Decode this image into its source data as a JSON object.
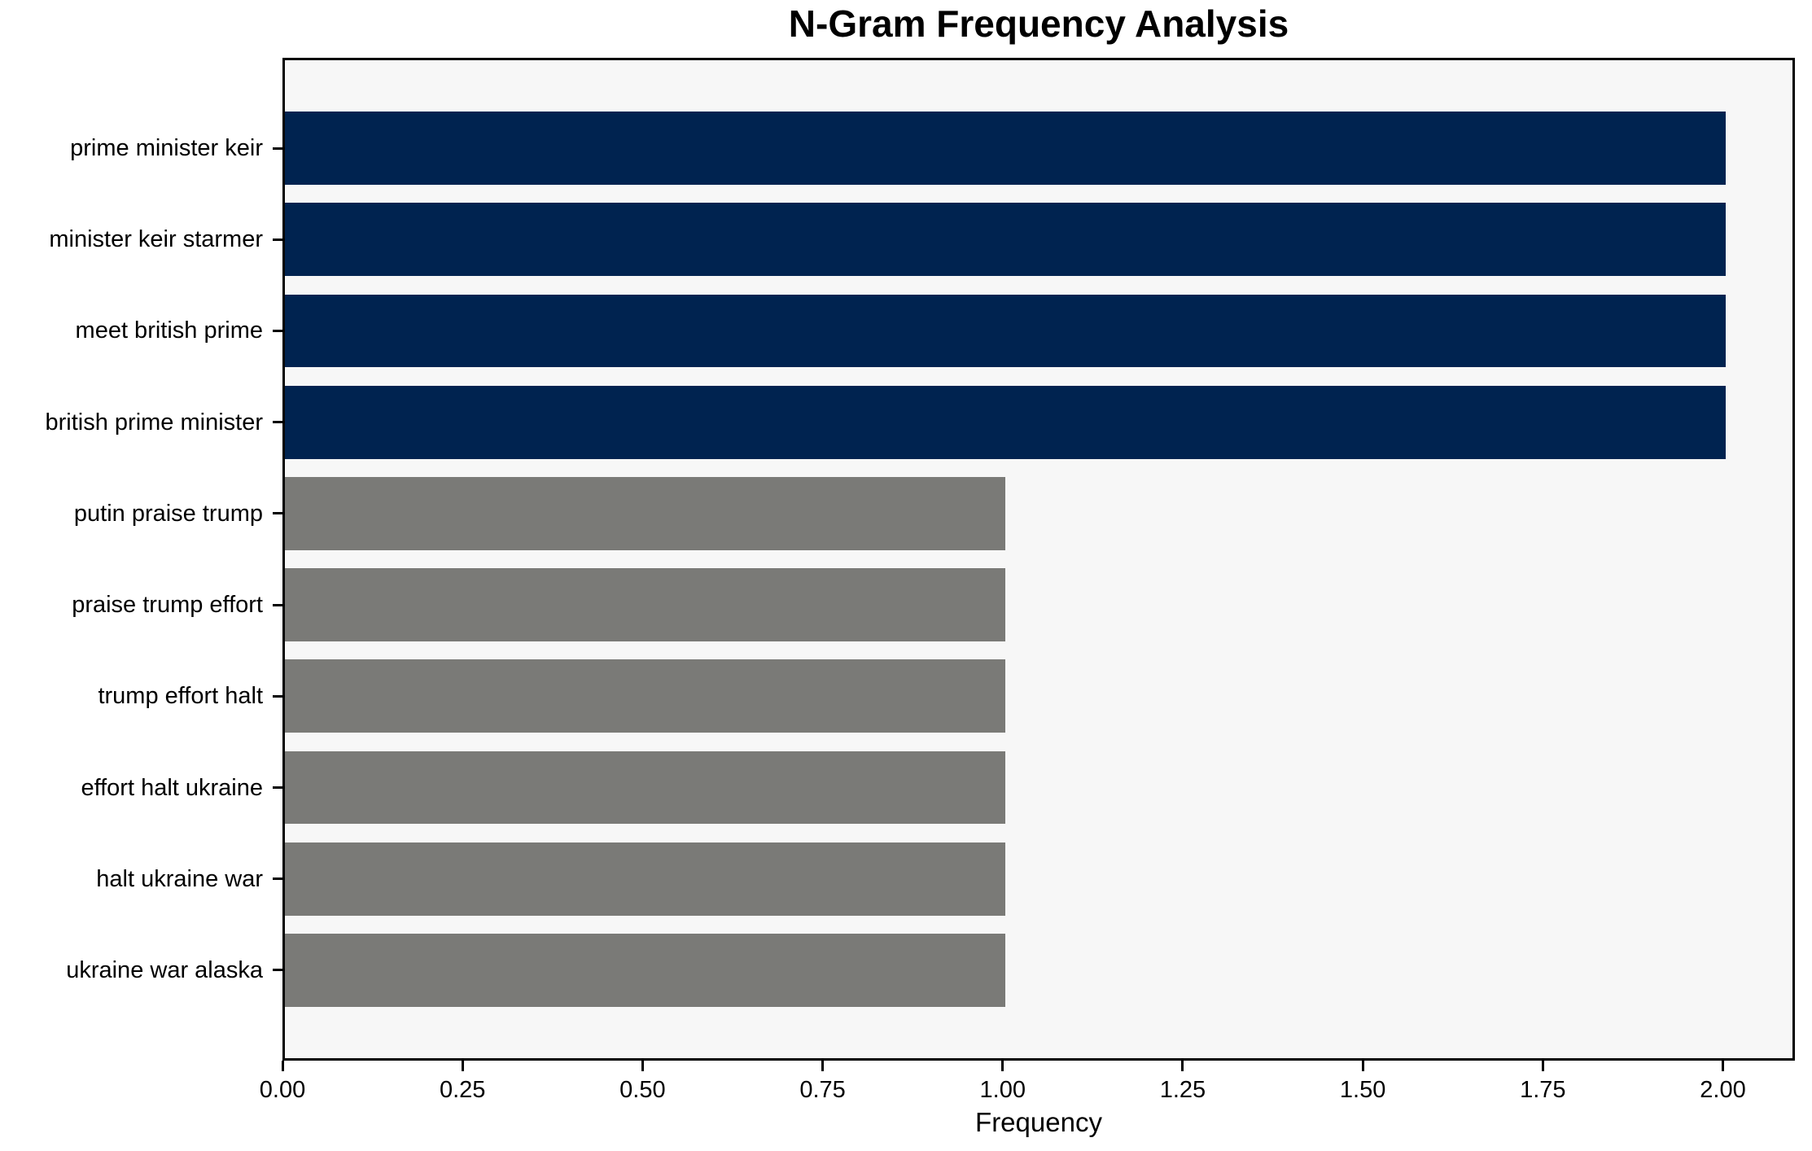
{
  "chart_data": {
    "type": "bar",
    "orientation": "horizontal",
    "title": "N-Gram Frequency Analysis",
    "xlabel": "Frequency",
    "ylabel": "",
    "categories": [
      "prime minister keir",
      "minister keir starmer",
      "meet british prime",
      "british prime minister",
      "putin praise trump",
      "praise trump effort",
      "trump effort halt",
      "effort halt ukraine",
      "halt ukraine war",
      "ukraine war alaska"
    ],
    "values": [
      2,
      2,
      2,
      2,
      1,
      1,
      1,
      1,
      1,
      1
    ],
    "xlim": [
      0,
      2.1
    ],
    "xticks": [
      0.0,
      0.25,
      0.5,
      0.75,
      1.0,
      1.25,
      1.5,
      1.75,
      2.0
    ],
    "xtick_labels": [
      "0.00",
      "0.25",
      "0.50",
      "0.75",
      "1.00",
      "1.25",
      "1.50",
      "1.75",
      "2.00"
    ],
    "grid": false,
    "legend": false,
    "colors": {
      "high_value_bar": "#002350",
      "low_value_bar": "#7a7a77",
      "plot_background": "#f7f7f7",
      "figure_background": "#ffffff",
      "spine": "#000000",
      "text": "#000000"
    },
    "color_rule": "bars with frequency 2 are navy, bars with frequency 1 are gray"
  }
}
